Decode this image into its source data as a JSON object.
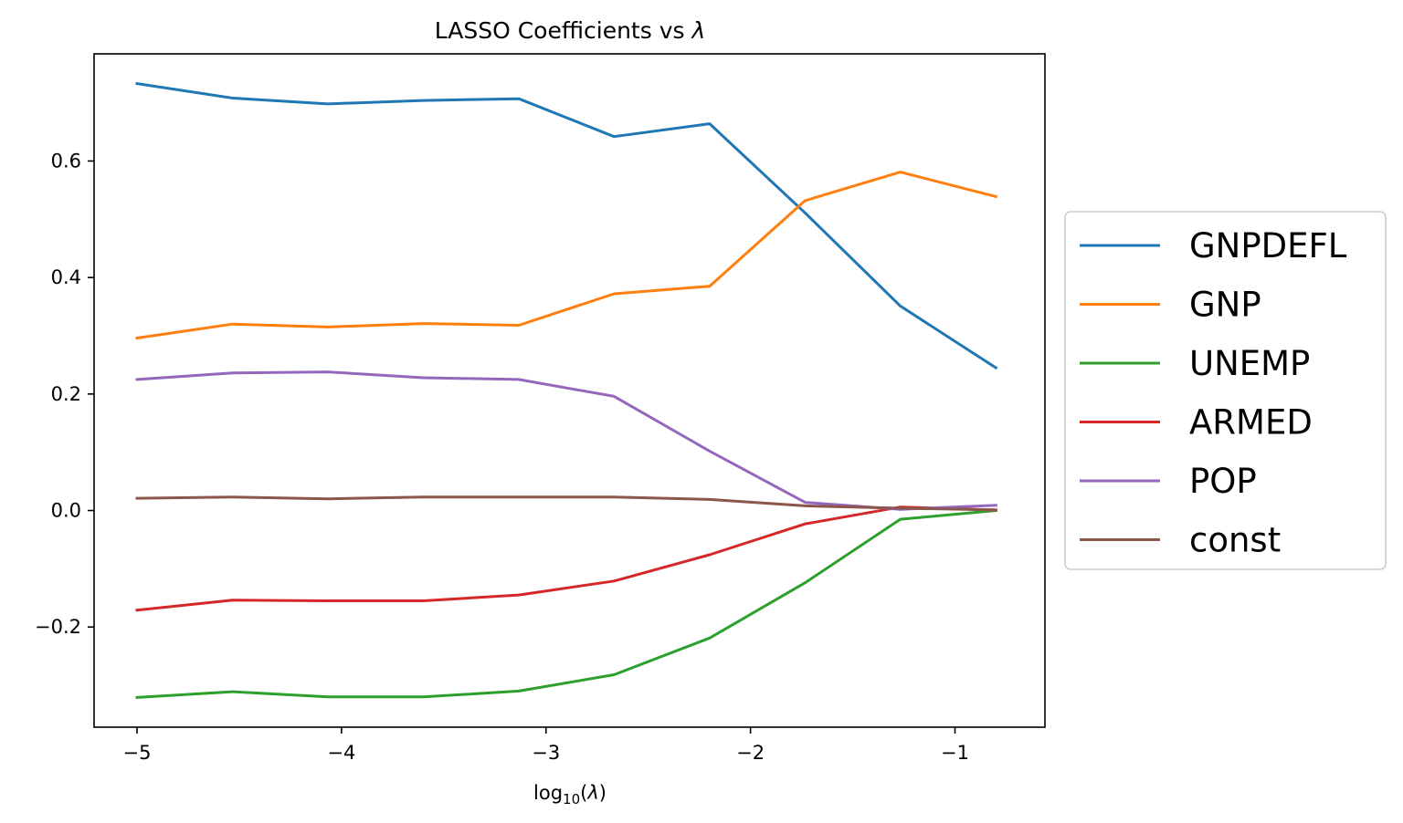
{
  "chart_data": {
    "type": "line",
    "title": "LASSO Coefficients vs λ",
    "xlabel": "log10(λ)",
    "ylabel": "",
    "xlim": [
      -5.21,
      -0.56
    ],
    "ylim": [
      -0.372,
      0.784
    ],
    "x_ticks": [
      -5,
      -4,
      -3,
      -2,
      -1
    ],
    "x_tick_labels": [
      "−5",
      "−4",
      "−3",
      "−2",
      "−1"
    ],
    "y_ticks": [
      -0.2,
      0.0,
      0.2,
      0.4,
      0.6
    ],
    "y_tick_labels": [
      "−0.2",
      "0.0",
      "0.2",
      "0.4",
      "0.6"
    ],
    "grid": false,
    "legend_position": "outside-right",
    "x": [
      -5.0,
      -4.533,
      -4.067,
      -3.6,
      -3.133,
      -2.667,
      -2.2,
      -1.733,
      -1.267,
      -0.8
    ],
    "series": [
      {
        "name": "GNPDEFL",
        "color": "#1f77b4",
        "values": [
          0.733,
          0.708,
          0.698,
          0.704,
          0.707,
          0.642,
          0.664,
          0.511,
          0.351,
          0.245
        ]
      },
      {
        "name": "GNP",
        "color": "#ff7f0e",
        "values": [
          0.296,
          0.32,
          0.315,
          0.321,
          0.318,
          0.372,
          0.385,
          0.532,
          0.581,
          0.539
        ]
      },
      {
        "name": "UNEMP",
        "color": "#2ca02c",
        "values": [
          -0.321,
          -0.311,
          -0.32,
          -0.32,
          -0.31,
          -0.282,
          -0.219,
          -0.124,
          -0.015,
          0.0
        ]
      },
      {
        "name": "ARMED",
        "color": "#d62728",
        "values": [
          -0.171,
          -0.154,
          -0.155,
          -0.155,
          -0.145,
          -0.121,
          -0.076,
          -0.023,
          0.006,
          0.001
        ]
      },
      {
        "name": "POP",
        "color": "#9467bd",
        "values": [
          0.225,
          0.236,
          0.238,
          0.228,
          0.225,
          0.196,
          0.102,
          0.014,
          0.002,
          0.009
        ]
      },
      {
        "name": "const",
        "color": "#8c564b",
        "values": [
          0.021,
          0.023,
          0.02,
          0.023,
          0.023,
          0.023,
          0.019,
          0.008,
          0.004,
          0.001
        ]
      }
    ]
  }
}
